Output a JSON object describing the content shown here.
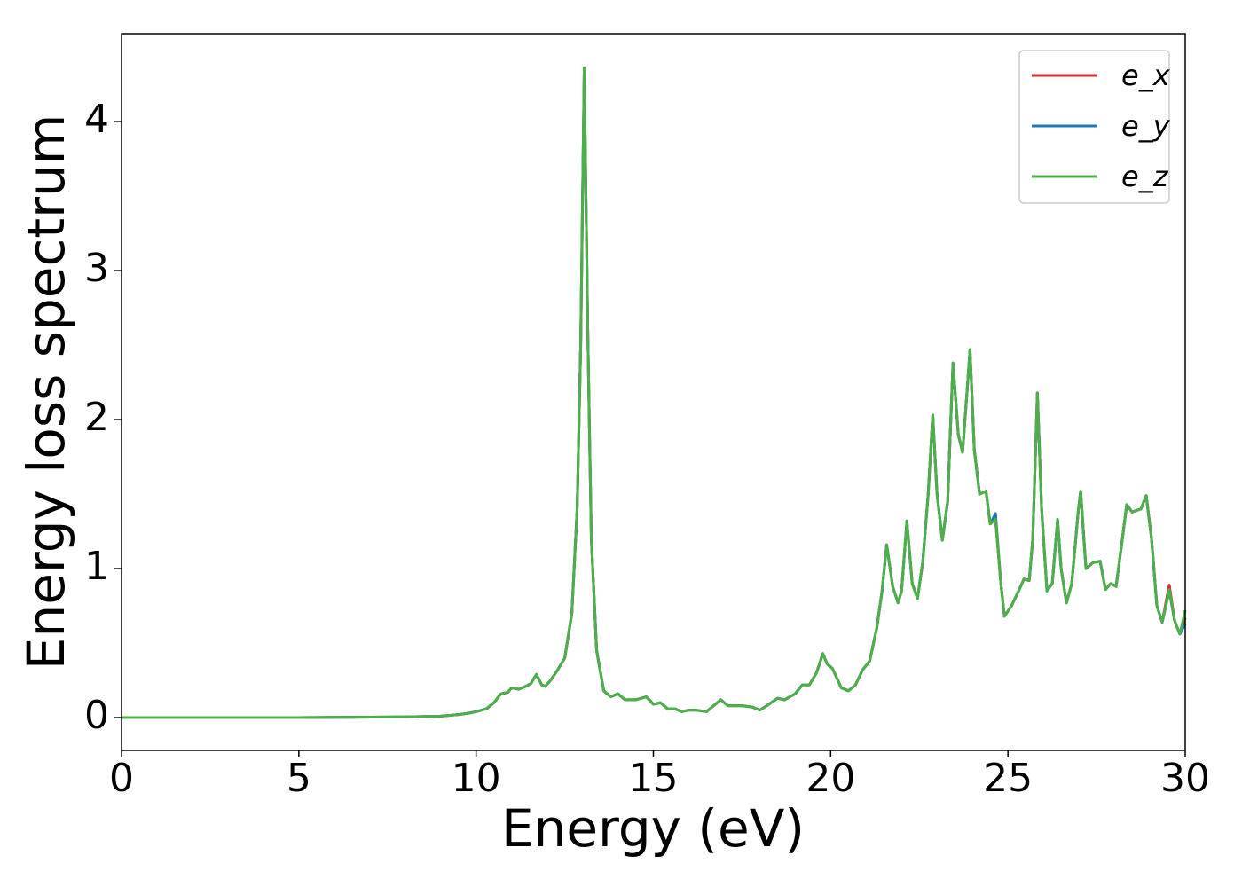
{
  "chart_data": {
    "type": "line",
    "xlabel": "Energy (eV)",
    "ylabel": "Energy loss spectrum",
    "xlim": [
      0,
      30
    ],
    "ylim": [
      -0.22,
      4.59
    ],
    "xticks": [
      0,
      5,
      10,
      15,
      20,
      25,
      30
    ],
    "yticks": [
      0,
      1,
      2,
      3,
      4
    ],
    "legend": "upper right",
    "x": [
      0,
      5,
      8,
      9,
      9.5,
      9.8,
      10,
      10.3,
      10.5,
      10.7,
      10.9,
      11.0,
      11.2,
      11.4,
      11.55,
      11.7,
      11.85,
      11.95,
      12.1,
      12.3,
      12.5,
      12.7,
      12.85,
      12.95,
      13.05,
      13.15,
      13.25,
      13.4,
      13.6,
      13.8,
      14.0,
      14.2,
      14.5,
      14.8,
      15.0,
      15.2,
      15.4,
      15.6,
      15.8,
      16.0,
      16.2,
      16.5,
      16.9,
      17.1,
      17.5,
      17.8,
      18.0,
      18.2,
      18.5,
      18.7,
      19.0,
      19.2,
      19.4,
      19.6,
      19.78,
      19.9,
      20.05,
      20.3,
      20.5,
      20.7,
      20.9,
      21.1,
      21.3,
      21.45,
      21.58,
      21.75,
      21.9,
      22.0,
      22.15,
      22.3,
      22.45,
      22.6,
      22.75,
      22.88,
      23.0,
      23.15,
      23.3,
      23.45,
      23.6,
      23.72,
      23.85,
      23.93,
      24.05,
      24.2,
      24.38,
      24.5,
      24.65,
      24.8,
      24.9,
      25.1,
      25.3,
      25.45,
      25.6,
      25.7,
      25.83,
      25.95,
      26.1,
      26.25,
      26.4,
      26.5,
      26.65,
      26.8,
      26.98,
      27.05,
      27.2,
      27.4,
      27.6,
      27.75,
      27.9,
      28.05,
      28.2,
      28.35,
      28.5,
      28.75,
      28.9,
      29.05,
      29.2,
      29.35,
      29.55,
      29.7,
      29.85,
      30
    ],
    "series": [
      {
        "name": "e_x",
        "color": "#d62728",
        "values": [
          0,
          0,
          0.005,
          0.01,
          0.02,
          0.03,
          0.04,
          0.06,
          0.1,
          0.16,
          0.17,
          0.2,
          0.19,
          0.21,
          0.23,
          0.29,
          0.22,
          0.21,
          0.25,
          0.32,
          0.4,
          0.7,
          1.4,
          2.5,
          4.36,
          2.6,
          1.2,
          0.45,
          0.18,
          0.14,
          0.16,
          0.12,
          0.12,
          0.14,
          0.09,
          0.1,
          0.06,
          0.06,
          0.04,
          0.05,
          0.05,
          0.04,
          0.12,
          0.08,
          0.08,
          0.07,
          0.05,
          0.08,
          0.13,
          0.12,
          0.16,
          0.22,
          0.22,
          0.3,
          0.43,
          0.36,
          0.33,
          0.2,
          0.18,
          0.22,
          0.32,
          0.38,
          0.6,
          0.85,
          1.16,
          0.88,
          0.77,
          0.85,
          1.32,
          0.9,
          0.8,
          1.05,
          1.5,
          2.03,
          1.5,
          1.19,
          1.45,
          2.38,
          1.9,
          1.78,
          2.2,
          2.47,
          1.8,
          1.5,
          1.52,
          1.3,
          1.33,
          0.9,
          0.68,
          0.75,
          0.85,
          0.93,
          0.92,
          1.2,
          2.18,
          1.4,
          0.85,
          0.9,
          1.33,
          1.0,
          0.77,
          0.9,
          1.38,
          1.52,
          1.0,
          1.04,
          1.05,
          0.86,
          0.9,
          0.88,
          1.15,
          1.43,
          1.38,
          1.4,
          1.49,
          1.2,
          0.75,
          0.64,
          0.89,
          0.65,
          0.56,
          0.67
        ]
      },
      {
        "name": "e_y",
        "color": "#1f77b4",
        "values": [
          0,
          0,
          0.005,
          0.01,
          0.02,
          0.03,
          0.04,
          0.06,
          0.1,
          0.16,
          0.17,
          0.2,
          0.19,
          0.21,
          0.23,
          0.29,
          0.22,
          0.21,
          0.25,
          0.32,
          0.4,
          0.7,
          1.4,
          2.5,
          4.36,
          2.6,
          1.2,
          0.45,
          0.18,
          0.14,
          0.16,
          0.12,
          0.12,
          0.14,
          0.09,
          0.1,
          0.06,
          0.06,
          0.04,
          0.05,
          0.05,
          0.04,
          0.12,
          0.08,
          0.08,
          0.07,
          0.05,
          0.08,
          0.13,
          0.12,
          0.16,
          0.22,
          0.22,
          0.3,
          0.43,
          0.36,
          0.33,
          0.2,
          0.18,
          0.22,
          0.32,
          0.38,
          0.6,
          0.85,
          1.16,
          0.88,
          0.77,
          0.85,
          1.32,
          0.9,
          0.8,
          1.05,
          1.5,
          2.03,
          1.5,
          1.19,
          1.45,
          2.38,
          1.9,
          1.78,
          2.2,
          2.47,
          1.8,
          1.5,
          1.52,
          1.3,
          1.37,
          0.9,
          0.68,
          0.75,
          0.85,
          0.93,
          0.92,
          1.2,
          2.18,
          1.4,
          0.85,
          0.9,
          1.33,
          1.0,
          0.77,
          0.9,
          1.38,
          1.52,
          1.0,
          1.04,
          1.05,
          0.86,
          0.9,
          0.88,
          1.15,
          1.43,
          1.38,
          1.4,
          1.49,
          1.2,
          0.75,
          0.64,
          0.85,
          0.65,
          0.56,
          0.63
        ]
      },
      {
        "name": "e_z",
        "color": "#4daf4a",
        "values": [
          0,
          0,
          0.005,
          0.01,
          0.02,
          0.03,
          0.04,
          0.06,
          0.1,
          0.16,
          0.17,
          0.2,
          0.19,
          0.21,
          0.23,
          0.29,
          0.22,
          0.21,
          0.25,
          0.32,
          0.4,
          0.7,
          1.4,
          2.5,
          4.36,
          2.6,
          1.2,
          0.45,
          0.18,
          0.14,
          0.16,
          0.12,
          0.12,
          0.14,
          0.09,
          0.1,
          0.06,
          0.06,
          0.04,
          0.05,
          0.05,
          0.04,
          0.12,
          0.08,
          0.08,
          0.07,
          0.05,
          0.08,
          0.13,
          0.12,
          0.16,
          0.22,
          0.22,
          0.3,
          0.43,
          0.36,
          0.33,
          0.2,
          0.18,
          0.22,
          0.32,
          0.38,
          0.6,
          0.85,
          1.16,
          0.88,
          0.77,
          0.85,
          1.32,
          0.9,
          0.8,
          1.05,
          1.5,
          2.03,
          1.5,
          1.19,
          1.45,
          2.38,
          1.9,
          1.78,
          2.2,
          2.47,
          1.8,
          1.5,
          1.52,
          1.3,
          1.33,
          0.9,
          0.68,
          0.75,
          0.85,
          0.93,
          0.92,
          1.2,
          2.18,
          1.4,
          0.85,
          0.9,
          1.33,
          1.0,
          0.77,
          0.9,
          1.38,
          1.52,
          1.0,
          1.04,
          1.05,
          0.86,
          0.9,
          0.88,
          1.15,
          1.43,
          1.38,
          1.4,
          1.49,
          1.2,
          0.75,
          0.64,
          0.86,
          0.65,
          0.56,
          0.72
        ]
      }
    ]
  }
}
